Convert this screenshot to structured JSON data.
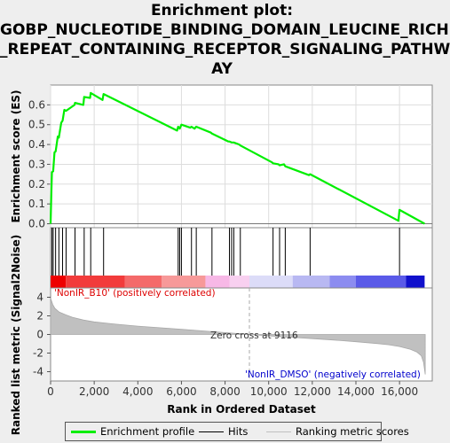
{
  "title_lines": [
    "Enrichment plot:",
    "GOBP_NUCLEOTIDE_BINDING_DOMAIN_LEUCINE_RICH",
    "_REPEAT_CONTAINING_RECEPTOR_SIGNALING_PATHW",
    "AY"
  ],
  "legend": {
    "enrichment_profile": "Enrichment profile",
    "hits": "Hits",
    "ranking_metric_scores": "Ranking metric scores"
  },
  "colors": {
    "profile": "#00ee00",
    "hits": "#000000",
    "metric_fill": "#c0c0c0",
    "positive": "#ff0000",
    "negative": "#0000dd",
    "zero_cross_line": "#aaaaaa"
  },
  "chart_data": [
    {
      "type": "line",
      "name": "enrichment-score-panel",
      "ylabel": "Enrichment score (ES)",
      "xlim": [
        0,
        17500
      ],
      "ylim": [
        -0.02,
        0.7
      ],
      "yticks": [
        "0.0",
        "0.1",
        "0.2",
        "0.3",
        "0.4",
        "0.5",
        "0.6"
      ],
      "grid": true,
      "series": [
        {
          "name": "Enrichment profile",
          "x": [
            0,
            30,
            60,
            120,
            180,
            230,
            330,
            380,
            490,
            550,
            630,
            710,
            1100,
            1120,
            1500,
            1540,
            1810,
            1840,
            2380,
            2430,
            5800,
            5850,
            5920,
            6000,
            6400,
            6460,
            6600,
            6680,
            7350,
            7400,
            8150,
            8200,
            8300,
            8400,
            8650,
            8700,
            10150,
            10200,
            10450,
            10500,
            10700,
            10760,
            11850,
            11900,
            15950,
            16000,
            17150
          ],
          "y": [
            0.0,
            0.13,
            0.26,
            0.265,
            0.36,
            0.365,
            0.44,
            0.435,
            0.51,
            0.52,
            0.575,
            0.57,
            0.6,
            0.61,
            0.6,
            0.64,
            0.635,
            0.66,
            0.625,
            0.655,
            0.47,
            0.49,
            0.48,
            0.5,
            0.485,
            0.49,
            0.48,
            0.49,
            0.46,
            0.455,
            0.415,
            0.415,
            0.41,
            0.41,
            0.4,
            0.395,
            0.31,
            0.305,
            0.3,
            0.295,
            0.3,
            0.29,
            0.245,
            0.25,
            0.015,
            0.07,
            0.0
          ]
        }
      ]
    },
    {
      "type": "bar",
      "name": "hits-panel",
      "hit_positions": [
        60,
        120,
        230,
        380,
        550,
        710,
        1120,
        1540,
        1840,
        2430,
        5850,
        5920,
        6000,
        6460,
        6680,
        7400,
        8200,
        8300,
        8400,
        8700,
        10200,
        10500,
        10760,
        11900,
        16000
      ]
    },
    {
      "type": "area",
      "name": "ranked-metric-panel",
      "xlabel": "Rank in Ordered Dataset",
      "ylabel": "Ranked list metric (Signal2Noise)",
      "xlim": [
        0,
        17500
      ],
      "ylim": [
        -5,
        5
      ],
      "yticks": [
        "-4",
        "-2",
        "0",
        "2",
        "4"
      ],
      "xticks": [
        "0",
        "2,000",
        "4,000",
        "6,000",
        "8,000",
        "10,000",
        "12,000",
        "14,000",
        "16,000"
      ],
      "zero_cross": 9116,
      "zero_cross_label": "Zero cross at 9116",
      "positive_label": "'NonIR_B10' (positively correlated)",
      "negative_label": "'NonIR_DMSO' (negatively correlated)",
      "x": [
        0,
        100,
        200,
        400,
        700,
        1000,
        1500,
        2000,
        3000,
        4000,
        5000,
        6000,
        7000,
        8000,
        9116,
        10000,
        11000,
        12000,
        13000,
        14000,
        15000,
        15500,
        16000,
        16500,
        16800,
        17000,
        17100,
        17180
      ],
      "y": [
        3.9,
        3.2,
        2.8,
        2.4,
        2.1,
        1.85,
        1.55,
        1.35,
        1.1,
        0.9,
        0.72,
        0.55,
        0.38,
        0.2,
        0.0,
        -0.15,
        -0.3,
        -0.45,
        -0.6,
        -0.78,
        -0.98,
        -1.1,
        -1.3,
        -1.6,
        -1.9,
        -2.3,
        -3.0,
        -4.3
      ]
    },
    {
      "type": "heatmap",
      "name": "rank-color-bar",
      "segments": [
        {
          "x0": 0,
          "x1": 700,
          "color": "#ee0000"
        },
        {
          "x0": 700,
          "x1": 3400,
          "color": "#f23b3b"
        },
        {
          "x0": 3400,
          "x1": 5100,
          "color": "#f46a6a"
        },
        {
          "x0": 5100,
          "x1": 7100,
          "color": "#f79999"
        },
        {
          "x0": 7100,
          "x1": 8200,
          "color": "#f7b8e6"
        },
        {
          "x0": 8200,
          "x1": 9116,
          "color": "#f8d0f0"
        },
        {
          "x0": 9116,
          "x1": 11100,
          "color": "#dcdcf8"
        },
        {
          "x0": 11100,
          "x1": 12800,
          "color": "#b8b8f2"
        },
        {
          "x0": 12800,
          "x1": 14000,
          "color": "#8c8cf0"
        },
        {
          "x0": 14000,
          "x1": 16300,
          "color": "#5a5ae8"
        },
        {
          "x0": 16300,
          "x1": 17150,
          "color": "#1010cc"
        }
      ]
    }
  ]
}
